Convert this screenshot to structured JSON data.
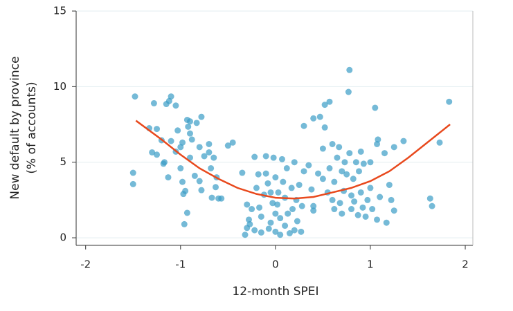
{
  "chart_data": {
    "type": "scatter",
    "x_label": "12-month SPEI",
    "y_label": [
      "New default by province",
      "(% of accounts)"
    ],
    "xlim": [
      -2.1,
      2.08
    ],
    "ylim": [
      -0.5,
      15
    ],
    "xticks": [
      -2,
      -1,
      0,
      1,
      2
    ],
    "yticks": [
      0,
      5,
      10,
      15
    ],
    "grid": true,
    "series": [
      {
        "name": "Provinces",
        "color": "#3a9dc6",
        "x": [
          -1.48,
          -1.5,
          -1.5,
          -1.33,
          -1.28,
          -1.25,
          -1.3,
          -1.25,
          -1.2,
          -1.18,
          -1.17,
          -1.15,
          -1.12,
          -1.1,
          -1.05,
          -1.13,
          -1.1,
          -1.05,
          -1.03,
          -1.0,
          -1.0,
          -0.98,
          -0.98,
          -0.97,
          -0.95,
          -0.96,
          -0.93,
          -0.93,
          -0.92,
          -0.9,
          -0.9,
          -0.88,
          -0.9,
          -0.85,
          -0.83,
          -0.8,
          -0.8,
          -0.78,
          -0.78,
          -0.75,
          -0.7,
          -0.7,
          -0.68,
          -0.67,
          -0.65,
          -0.63,
          -0.62,
          -0.6,
          -0.57,
          -0.5,
          -0.45,
          -0.35,
          -0.3,
          -0.32,
          -0.28,
          -0.25,
          -0.22,
          -0.3,
          -0.27,
          -0.2,
          -0.18,
          -0.15,
          -0.15,
          -0.12,
          -0.1,
          -0.1,
          -0.08,
          -0.07,
          -0.05,
          -0.03,
          -0.02,
          0.0,
          0.0,
          0.02,
          0.03,
          0.05,
          0.05,
          0.07,
          0.08,
          0.1,
          0.1,
          0.12,
          0.13,
          0.15,
          0.17,
          0.18,
          0.2,
          0.2,
          0.22,
          0.23,
          0.25,
          0.27,
          0.28,
          -0.22,
          -0.05,
          0.0,
          -0.17,
          0.3,
          0.3,
          0.35,
          0.38,
          0.4,
          0.4,
          0.4,
          0.45,
          0.47,
          0.5,
          0.5,
          0.52,
          0.52,
          0.55,
          0.57,
          0.57,
          0.6,
          0.6,
          0.62,
          0.62,
          0.65,
          0.67,
          0.68,
          0.7,
          0.7,
          0.72,
          0.73,
          0.75,
          0.77,
          0.78,
          0.78,
          0.8,
          0.8,
          0.82,
          0.83,
          0.85,
          0.87,
          0.88,
          0.9,
          0.9,
          0.92,
          0.93,
          0.95,
          0.97,
          1.0,
          1.0,
          1.02,
          1.05,
          1.07,
          1.07,
          1.08,
          1.1,
          1.15,
          1.17,
          1.2,
          1.22,
          1.25,
          1.25,
          1.35,
          1.63,
          1.65,
          1.73,
          1.83
        ],
        "values": [
          9.35,
          4.3,
          3.55,
          7.25,
          8.9,
          7.2,
          5.65,
          5.5,
          6.45,
          4.9,
          5.0,
          8.85,
          9.05,
          9.35,
          8.75,
          4.0,
          6.4,
          5.7,
          7.1,
          4.6,
          6.0,
          3.7,
          6.3,
          2.9,
          3.1,
          0.9,
          1.65,
          7.8,
          7.35,
          7.7,
          6.9,
          6.5,
          5.3,
          4.1,
          7.6,
          6.0,
          3.75,
          3.15,
          8.0,
          5.4,
          6.2,
          5.65,
          4.6,
          2.65,
          5.3,
          3.35,
          4.0,
          2.6,
          2.6,
          6.1,
          6.3,
          4.3,
          2.2,
          0.2,
          1.2,
          1.9,
          0.5,
          0.65,
          0.9,
          3.3,
          4.2,
          1.4,
          0.35,
          2.85,
          4.25,
          5.4,
          3.6,
          0.6,
          1.0,
          2.3,
          5.3,
          0.4,
          4.0,
          2.2,
          3.0,
          1.3,
          0.2,
          5.2,
          3.7,
          2.65,
          0.8,
          4.6,
          1.6,
          0.3,
          3.3,
          1.9,
          5.0,
          0.5,
          2.5,
          1.1,
          3.5,
          0.4,
          2.1,
          5.35,
          3.0,
          1.6,
          2.0,
          4.4,
          7.4,
          4.8,
          3.2,
          2.1,
          1.8,
          7.9,
          4.25,
          8.0,
          5.9,
          3.9,
          7.3,
          8.8,
          3.0,
          9.0,
          4.6,
          6.2,
          2.5,
          3.7,
          1.9,
          5.3,
          6.0,
          2.3,
          4.4,
          1.6,
          3.1,
          5.0,
          4.2,
          9.65,
          11.1,
          5.6,
          2.8,
          1.9,
          3.9,
          2.4,
          5.0,
          1.5,
          4.4,
          3.0,
          5.7,
          2.0,
          4.9,
          1.4,
          2.5,
          5.0,
          3.3,
          1.9,
          8.6,
          1.2,
          6.2,
          6.5,
          2.7,
          5.6,
          1.0,
          3.5,
          2.5,
          6.0,
          1.8,
          6.4,
          2.6,
          2.1,
          6.3,
          9.0
        ]
      },
      {
        "name": "Fitted curve",
        "type": "line",
        "color": "#e8491d",
        "x": [
          -1.47,
          -1.2,
          -1.0,
          -0.8,
          -0.6,
          -0.4,
          -0.2,
          0,
          0.2,
          0.4,
          0.6,
          0.8,
          1.0,
          1.2,
          1.4,
          1.6,
          1.84
        ],
        "values": [
          7.75,
          6.5,
          5.5,
          4.6,
          3.9,
          3.3,
          2.9,
          2.65,
          2.6,
          2.7,
          3.0,
          3.3,
          3.75,
          4.4,
          5.3,
          6.3,
          7.5
        ]
      }
    ]
  }
}
